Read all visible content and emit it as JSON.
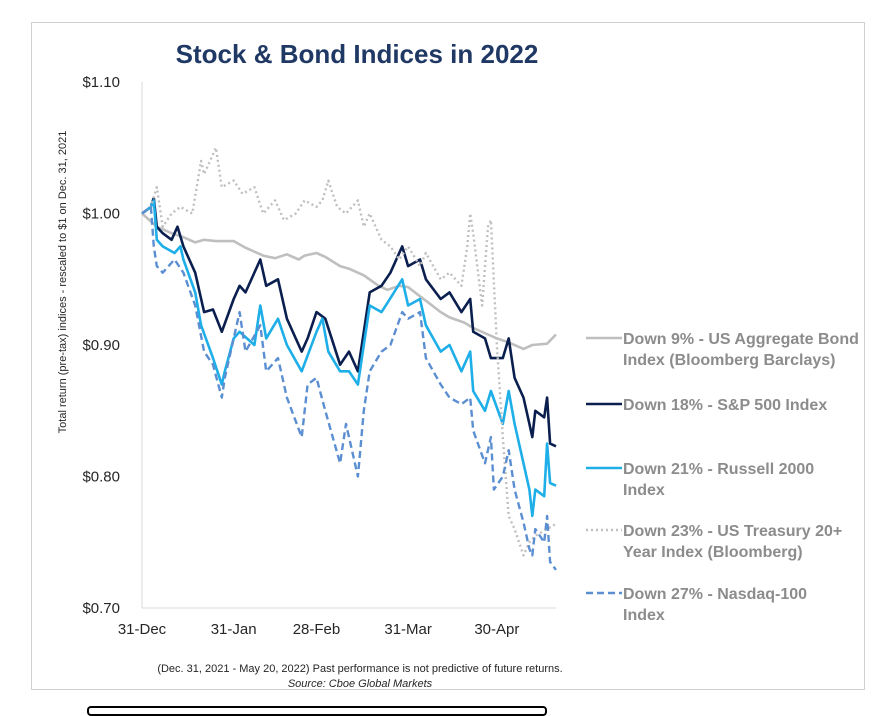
{
  "chart_data": {
    "type": "line",
    "title": "Stock & Bond Indices in 2022",
    "ylabel": "Total return (pre-tax) indices - rescaled to $1 on Dec. 31, 2021",
    "xlabel": "",
    "ylim": [
      0.7,
      1.1
    ],
    "y_ticks": [
      "$0.70",
      "$0.80",
      "$0.90",
      "$1.00",
      "$1.10"
    ],
    "y_tick_values": [
      0.7,
      0.8,
      0.9,
      1.0,
      1.1
    ],
    "x_ticks": [
      "31-Dec",
      "31-Jan",
      "28-Feb",
      "31-Mar",
      "30-Apr"
    ],
    "x_tick_values": [
      "2021-12-31",
      "2022-01-31",
      "2022-02-28",
      "2022-03-31",
      "2022-04-30"
    ],
    "x_range": [
      "2021-12-31",
      "2022-05-20"
    ],
    "grid": false,
    "legend_position": "right",
    "series": [
      {
        "name": "Down 9% - US Aggregate Bond Index (Bloomberg Barclays)",
        "legend_lines": [
          "Down 9% - US Aggregate Bond",
          "Index (Bloomberg Barclays)"
        ],
        "color": "#bfbfbf",
        "style": "solid",
        "points": [
          [
            "2021-12-31",
            1.0
          ],
          [
            "2022-01-05",
            0.99
          ],
          [
            "2022-01-10",
            0.985
          ],
          [
            "2022-01-14",
            0.982
          ],
          [
            "2022-01-18",
            0.978
          ],
          [
            "2022-01-21",
            0.98
          ],
          [
            "2022-01-25",
            0.979
          ],
          [
            "2022-01-31",
            0.979
          ],
          [
            "2022-02-04",
            0.974
          ],
          [
            "2022-02-10",
            0.968
          ],
          [
            "2022-02-14",
            0.966
          ],
          [
            "2022-02-18",
            0.969
          ],
          [
            "2022-02-22",
            0.965
          ],
          [
            "2022-02-24",
            0.968
          ],
          [
            "2022-02-28",
            0.97
          ],
          [
            "2022-03-03",
            0.967
          ],
          [
            "2022-03-08",
            0.96
          ],
          [
            "2022-03-11",
            0.958
          ],
          [
            "2022-03-16",
            0.953
          ],
          [
            "2022-03-21",
            0.945
          ],
          [
            "2022-03-24",
            0.942
          ],
          [
            "2022-03-28",
            0.945
          ],
          [
            "2022-03-31",
            0.944
          ],
          [
            "2022-04-04",
            0.937
          ],
          [
            "2022-04-07",
            0.932
          ],
          [
            "2022-04-11",
            0.925
          ],
          [
            "2022-04-14",
            0.921
          ],
          [
            "2022-04-19",
            0.917
          ],
          [
            "2022-04-22",
            0.913
          ],
          [
            "2022-04-27",
            0.908
          ],
          [
            "2022-04-30",
            0.905
          ],
          [
            "2022-05-04",
            0.902
          ],
          [
            "2022-05-09",
            0.897
          ],
          [
            "2022-05-12",
            0.9
          ],
          [
            "2022-05-17",
            0.901
          ],
          [
            "2022-05-20",
            0.908
          ]
        ]
      },
      {
        "name": "Down 18% - S&P 500 Index",
        "legend_lines": [
          "Down 18% - S&P 500 Index"
        ],
        "color": "#0b1f4f",
        "style": "solid",
        "points": [
          [
            "2021-12-31",
            1.0
          ],
          [
            "2022-01-03",
            1.005
          ],
          [
            "2022-01-04",
            1.012
          ],
          [
            "2022-01-05",
            0.99
          ],
          [
            "2022-01-07",
            0.985
          ],
          [
            "2022-01-10",
            0.98
          ],
          [
            "2022-01-12",
            0.99
          ],
          [
            "2022-01-14",
            0.975
          ],
          [
            "2022-01-18",
            0.955
          ],
          [
            "2022-01-21",
            0.925
          ],
          [
            "2022-01-24",
            0.927
          ],
          [
            "2022-01-27",
            0.91
          ],
          [
            "2022-01-31",
            0.935
          ],
          [
            "2022-02-02",
            0.945
          ],
          [
            "2022-02-04",
            0.94
          ],
          [
            "2022-02-09",
            0.965
          ],
          [
            "2022-02-11",
            0.945
          ],
          [
            "2022-02-15",
            0.95
          ],
          [
            "2022-02-18",
            0.92
          ],
          [
            "2022-02-23",
            0.895
          ],
          [
            "2022-02-25",
            0.905
          ],
          [
            "2022-02-28",
            0.925
          ],
          [
            "2022-03-03",
            0.92
          ],
          [
            "2022-03-08",
            0.885
          ],
          [
            "2022-03-11",
            0.895
          ],
          [
            "2022-03-14",
            0.88
          ],
          [
            "2022-03-16",
            0.91
          ],
          [
            "2022-03-18",
            0.94
          ],
          [
            "2022-03-22",
            0.945
          ],
          [
            "2022-03-25",
            0.955
          ],
          [
            "2022-03-29",
            0.975
          ],
          [
            "2022-03-31",
            0.96
          ],
          [
            "2022-04-04",
            0.965
          ],
          [
            "2022-04-06",
            0.95
          ],
          [
            "2022-04-11",
            0.935
          ],
          [
            "2022-04-14",
            0.94
          ],
          [
            "2022-04-18",
            0.925
          ],
          [
            "2022-04-21",
            0.935
          ],
          [
            "2022-04-22",
            0.91
          ],
          [
            "2022-04-26",
            0.905
          ],
          [
            "2022-04-28",
            0.89
          ],
          [
            "2022-05-02",
            0.89
          ],
          [
            "2022-05-04",
            0.905
          ],
          [
            "2022-05-06",
            0.875
          ],
          [
            "2022-05-09",
            0.86
          ],
          [
            "2022-05-11",
            0.84
          ],
          [
            "2022-05-12",
            0.83
          ],
          [
            "2022-05-13",
            0.85
          ],
          [
            "2022-05-16",
            0.845
          ],
          [
            "2022-05-17",
            0.86
          ],
          [
            "2022-05-18",
            0.825
          ],
          [
            "2022-05-20",
            0.823
          ]
        ]
      },
      {
        "name": "Down 21% - Russell 2000 Index",
        "legend_lines": [
          "Down 21% - Russell 2000",
          "Index"
        ],
        "color": "#1eaee8",
        "style": "solid",
        "points": [
          [
            "2021-12-31",
            1.0
          ],
          [
            "2022-01-03",
            1.005
          ],
          [
            "2022-01-04",
            1.01
          ],
          [
            "2022-01-05",
            0.98
          ],
          [
            "2022-01-07",
            0.975
          ],
          [
            "2022-01-11",
            0.97
          ],
          [
            "2022-01-13",
            0.975
          ],
          [
            "2022-01-14",
            0.965
          ],
          [
            "2022-01-18",
            0.94
          ],
          [
            "2022-01-20",
            0.915
          ],
          [
            "2022-01-24",
            0.89
          ],
          [
            "2022-01-27",
            0.87
          ],
          [
            "2022-01-28",
            0.88
          ],
          [
            "2022-01-31",
            0.905
          ],
          [
            "2022-02-02",
            0.91
          ],
          [
            "2022-02-07",
            0.9
          ],
          [
            "2022-02-09",
            0.93
          ],
          [
            "2022-02-11",
            0.905
          ],
          [
            "2022-02-15",
            0.92
          ],
          [
            "2022-02-18",
            0.9
          ],
          [
            "2022-02-23",
            0.88
          ],
          [
            "2022-02-28",
            0.91
          ],
          [
            "2022-03-02",
            0.92
          ],
          [
            "2022-03-04",
            0.895
          ],
          [
            "2022-03-08",
            0.88
          ],
          [
            "2022-03-11",
            0.88
          ],
          [
            "2022-03-14",
            0.87
          ],
          [
            "2022-03-16",
            0.9
          ],
          [
            "2022-03-18",
            0.93
          ],
          [
            "2022-03-22",
            0.925
          ],
          [
            "2022-03-24",
            0.932
          ],
          [
            "2022-03-29",
            0.95
          ],
          [
            "2022-03-31",
            0.93
          ],
          [
            "2022-04-04",
            0.935
          ],
          [
            "2022-04-06",
            0.915
          ],
          [
            "2022-04-11",
            0.895
          ],
          [
            "2022-04-14",
            0.9
          ],
          [
            "2022-04-18",
            0.88
          ],
          [
            "2022-04-21",
            0.895
          ],
          [
            "2022-04-22",
            0.865
          ],
          [
            "2022-04-26",
            0.85
          ],
          [
            "2022-04-28",
            0.865
          ],
          [
            "2022-05-02",
            0.84
          ],
          [
            "2022-05-04",
            0.865
          ],
          [
            "2022-05-06",
            0.84
          ],
          [
            "2022-05-09",
            0.81
          ],
          [
            "2022-05-11",
            0.79
          ],
          [
            "2022-05-12",
            0.77
          ],
          [
            "2022-05-13",
            0.79
          ],
          [
            "2022-05-16",
            0.785
          ],
          [
            "2022-05-17",
            0.825
          ],
          [
            "2022-05-18",
            0.795
          ],
          [
            "2022-05-20",
            0.793
          ]
        ]
      },
      {
        "name": "Down 23% - US Treasury 20+ Year Index (Bloomberg)",
        "legend_lines": [
          "Down 23% - US Treasury 20+",
          "Year Index (Bloomberg)"
        ],
        "color": "#bfbfbf",
        "style": "dotted",
        "points": [
          [
            "2021-12-31",
            1.0
          ],
          [
            "2022-01-03",
            1.005
          ],
          [
            "2022-01-05",
            1.02
          ],
          [
            "2022-01-07",
            0.99
          ],
          [
            "2022-01-10",
            1.0
          ],
          [
            "2022-01-13",
            1.005
          ],
          [
            "2022-01-17",
            1.0
          ],
          [
            "2022-01-20",
            1.04
          ],
          [
            "2022-01-21",
            1.03
          ],
          [
            "2022-01-24",
            1.045
          ],
          [
            "2022-01-25",
            1.05
          ],
          [
            "2022-01-27",
            1.02
          ],
          [
            "2022-01-31",
            1.025
          ],
          [
            "2022-02-03",
            1.015
          ],
          [
            "2022-02-07",
            1.02
          ],
          [
            "2022-02-10",
            1.0
          ],
          [
            "2022-02-14",
            1.01
          ],
          [
            "2022-02-17",
            0.995
          ],
          [
            "2022-02-21",
            1.0
          ],
          [
            "2022-02-24",
            1.01
          ],
          [
            "2022-02-28",
            1.005
          ],
          [
            "2022-03-02",
            1.01
          ],
          [
            "2022-03-04",
            1.025
          ],
          [
            "2022-03-07",
            1.005
          ],
          [
            "2022-03-10",
            1.0
          ],
          [
            "2022-03-14",
            1.01
          ],
          [
            "2022-03-16",
            0.99
          ],
          [
            "2022-03-18",
            1.0
          ],
          [
            "2022-03-22",
            0.98
          ],
          [
            "2022-03-25",
            0.975
          ],
          [
            "2022-03-28",
            0.965
          ],
          [
            "2022-03-31",
            0.975
          ],
          [
            "2022-04-04",
            0.96
          ],
          [
            "2022-04-06",
            0.97
          ],
          [
            "2022-04-11",
            0.95
          ],
          [
            "2022-04-14",
            0.955
          ],
          [
            "2022-04-18",
            0.945
          ],
          [
            "2022-04-20",
            0.975
          ],
          [
            "2022-04-21",
            1.0
          ],
          [
            "2022-04-22",
            0.985
          ],
          [
            "2022-04-25",
            0.93
          ],
          [
            "2022-04-27",
            0.99
          ],
          [
            "2022-04-28",
            0.995
          ],
          [
            "2022-04-30",
            0.9
          ],
          [
            "2022-05-02",
            0.83
          ],
          [
            "2022-05-04",
            0.77
          ],
          [
            "2022-05-06",
            0.76
          ],
          [
            "2022-05-09",
            0.74
          ],
          [
            "2022-05-11",
            0.75
          ],
          [
            "2022-05-13",
            0.755
          ],
          [
            "2022-05-17",
            0.76
          ],
          [
            "2022-05-20",
            0.764
          ]
        ]
      },
      {
        "name": "Down 27% - Nasdaq-100 Index",
        "legend_lines": [
          "Down 27% - Nasdaq-100",
          "Index"
        ],
        "color": "#5b8fd1",
        "style": "dashed",
        "points": [
          [
            "2021-12-31",
            1.0
          ],
          [
            "2022-01-03",
            1.005
          ],
          [
            "2022-01-04",
            0.975
          ],
          [
            "2022-01-05",
            0.96
          ],
          [
            "2022-01-07",
            0.955
          ],
          [
            "2022-01-11",
            0.965
          ],
          [
            "2022-01-14",
            0.955
          ],
          [
            "2022-01-18",
            0.93
          ],
          [
            "2022-01-21",
            0.895
          ],
          [
            "2022-01-24",
            0.885
          ],
          [
            "2022-01-27",
            0.86
          ],
          [
            "2022-01-28",
            0.875
          ],
          [
            "2022-01-31",
            0.905
          ],
          [
            "2022-02-02",
            0.925
          ],
          [
            "2022-02-04",
            0.895
          ],
          [
            "2022-02-09",
            0.915
          ],
          [
            "2022-02-11",
            0.88
          ],
          [
            "2022-02-15",
            0.89
          ],
          [
            "2022-02-18",
            0.86
          ],
          [
            "2022-02-23",
            0.83
          ],
          [
            "2022-02-25",
            0.87
          ],
          [
            "2022-02-28",
            0.875
          ],
          [
            "2022-03-03",
            0.85
          ],
          [
            "2022-03-08",
            0.81
          ],
          [
            "2022-03-10",
            0.84
          ],
          [
            "2022-03-14",
            0.8
          ],
          [
            "2022-03-16",
            0.85
          ],
          [
            "2022-03-18",
            0.88
          ],
          [
            "2022-03-22",
            0.895
          ],
          [
            "2022-03-25",
            0.9
          ],
          [
            "2022-03-29",
            0.925
          ],
          [
            "2022-03-31",
            0.92
          ],
          [
            "2022-04-04",
            0.925
          ],
          [
            "2022-04-06",
            0.89
          ],
          [
            "2022-04-11",
            0.87
          ],
          [
            "2022-04-14",
            0.86
          ],
          [
            "2022-04-18",
            0.855
          ],
          [
            "2022-04-21",
            0.86
          ],
          [
            "2022-04-22",
            0.835
          ],
          [
            "2022-04-26",
            0.81
          ],
          [
            "2022-04-28",
            0.83
          ],
          [
            "2022-04-29",
            0.79
          ],
          [
            "2022-05-02",
            0.8
          ],
          [
            "2022-05-04",
            0.82
          ],
          [
            "2022-05-06",
            0.79
          ],
          [
            "2022-05-09",
            0.765
          ],
          [
            "2022-05-11",
            0.745
          ],
          [
            "2022-05-12",
            0.74
          ],
          [
            "2022-05-13",
            0.76
          ],
          [
            "2022-05-16",
            0.75
          ],
          [
            "2022-05-17",
            0.77
          ],
          [
            "2022-05-18",
            0.735
          ],
          [
            "2022-05-20",
            0.729
          ]
        ]
      }
    ]
  },
  "footnote": {
    "line1": "(Dec. 31, 2021 - May 20, 2022)  Past performance is not predictive of future returns.",
    "line2": "Source: Cboe Global Markets"
  }
}
